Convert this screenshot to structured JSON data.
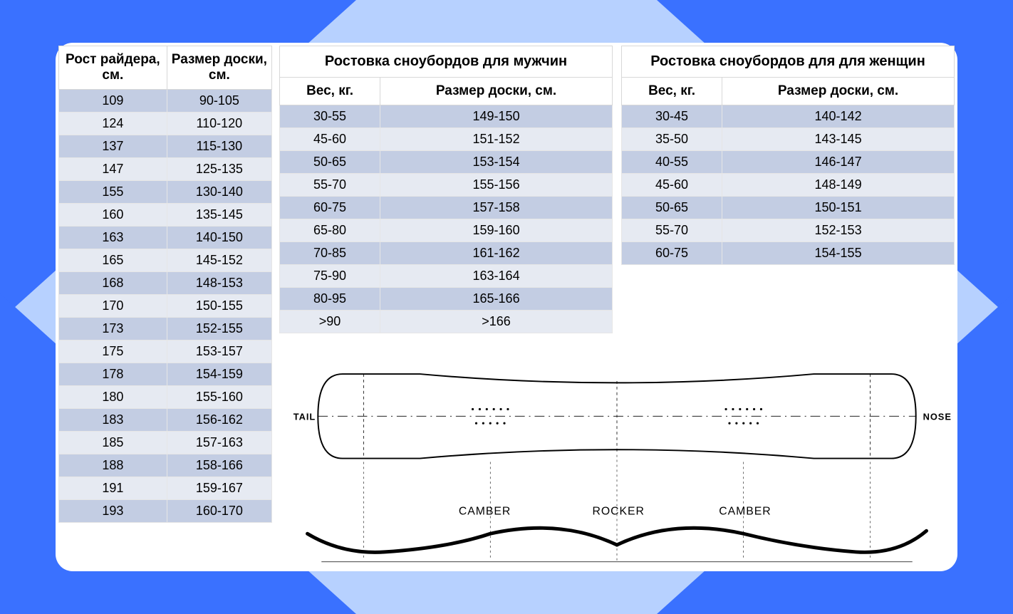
{
  "background": {
    "outer_color": "#b7d1ff",
    "triangle_color": "#3a71ff"
  },
  "colors": {
    "row_odd": "#c3cde3",
    "row_even": "#e6eaf2",
    "border": "#d8d8d8",
    "text": "#000000",
    "card_bg": "#ffffff"
  },
  "height_table": {
    "columns": [
      "Рост райдера, см.",
      "Размер доски, см."
    ],
    "rows": [
      [
        "109",
        "90-105"
      ],
      [
        "124",
        "110-120"
      ],
      [
        "137",
        "115-130"
      ],
      [
        "147",
        "125-135"
      ],
      [
        "155",
        "130-140"
      ],
      [
        "160",
        "135-145"
      ],
      [
        "163",
        "140-150"
      ],
      [
        "165",
        "145-152"
      ],
      [
        "168",
        "148-153"
      ],
      [
        "170",
        "150-155"
      ],
      [
        "173",
        "152-155"
      ],
      [
        "175",
        "153-157"
      ],
      [
        "178",
        "154-159"
      ],
      [
        "180",
        "155-160"
      ],
      [
        "183",
        "156-162"
      ],
      [
        "185",
        "157-163"
      ],
      [
        "188",
        "158-166"
      ],
      [
        "191",
        "159-167"
      ],
      [
        "193",
        "160-170"
      ]
    ]
  },
  "men_table": {
    "title": "Ростовка сноубордов для мужчин",
    "columns": [
      "Вес, кг.",
      "Размер доски, см."
    ],
    "rows": [
      [
        "30-55",
        "149-150"
      ],
      [
        "45-60",
        "151-152"
      ],
      [
        "50-65",
        "153-154"
      ],
      [
        "55-70",
        "155-156"
      ],
      [
        "60-75",
        "157-158"
      ],
      [
        "65-80",
        "159-160"
      ],
      [
        "70-85",
        "161-162"
      ],
      [
        "75-90",
        "163-164"
      ],
      [
        "80-95",
        "165-166"
      ],
      [
        ">90",
        ">166"
      ]
    ]
  },
  "women_table": {
    "title": "Ростовка сноубордов для для женщин",
    "columns": [
      "Вес, кг.",
      "Размер доски, см."
    ],
    "rows": [
      [
        "30-45",
        "140-142"
      ],
      [
        "35-50",
        "143-145"
      ],
      [
        "40-55",
        "146-147"
      ],
      [
        "45-60",
        "148-149"
      ],
      [
        "50-65",
        "150-151"
      ],
      [
        "55-70",
        "152-153"
      ],
      [
        "60-75",
        "154-155"
      ]
    ]
  },
  "diagram": {
    "tail_label": "TAIL",
    "nose_label": "NOSE",
    "profile_labels": [
      "CAMBER",
      "ROCKER",
      "CAMBER"
    ],
    "outline_color": "#000000",
    "outline_width": 2,
    "profile_line_width": 4,
    "dash_color": "#000000"
  }
}
